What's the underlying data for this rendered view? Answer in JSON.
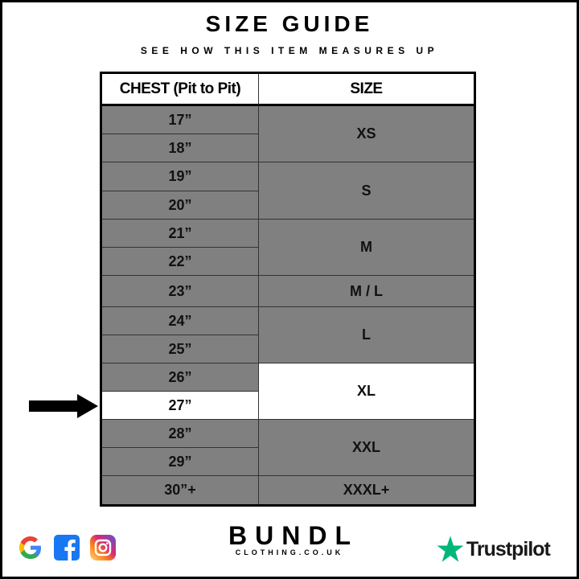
{
  "title": "SIZE GUIDE",
  "subtitle": "SEE HOW THIS ITEM MEASURES UP",
  "table": {
    "headers": [
      "CHEST (Pit to Pit)",
      "SIZE"
    ],
    "chest": [
      {
        "label": "17”",
        "highlighted": false
      },
      {
        "label": "18”",
        "highlighted": false
      },
      {
        "label": "19”",
        "highlighted": false
      },
      {
        "label": "20”",
        "highlighted": false
      },
      {
        "label": "21”",
        "highlighted": false
      },
      {
        "label": "22”",
        "highlighted": false
      },
      {
        "label": "23”",
        "highlighted": false
      },
      {
        "label": "24”",
        "highlighted": false
      },
      {
        "label": "25”",
        "highlighted": false
      },
      {
        "label": "26”",
        "highlighted": false
      },
      {
        "label": "27”",
        "highlighted": true
      },
      {
        "label": "28”",
        "highlighted": false
      },
      {
        "label": "29”",
        "highlighted": false
      },
      {
        "label": "30”+",
        "highlighted": false
      }
    ],
    "sizes": [
      {
        "label": "XS",
        "rows": 2,
        "highlighted": false
      },
      {
        "label": "S",
        "rows": 2,
        "highlighted": false
      },
      {
        "label": "M",
        "rows": 2,
        "highlighted": false
      },
      {
        "label": "M / L",
        "rows": 1,
        "highlighted": false
      },
      {
        "label": "L",
        "rows": 2,
        "highlighted": false
      },
      {
        "label": "XL",
        "rows": 2,
        "highlighted": true
      },
      {
        "label": "XXL",
        "rows": 2,
        "highlighted": false
      },
      {
        "label": "XXXL+",
        "rows": 1,
        "highlighted": false
      }
    ]
  },
  "colors": {
    "row": "#808080",
    "highlight": "#ffffff",
    "trustpilot": "#00b67a"
  },
  "footer": {
    "social_icons": [
      "google-icon",
      "facebook-icon",
      "instagram-icon"
    ],
    "brand_name": "BUNDL",
    "brand_domain": "CLOTHING.CO.UK",
    "trustpilot_label": "Trustpilot"
  }
}
